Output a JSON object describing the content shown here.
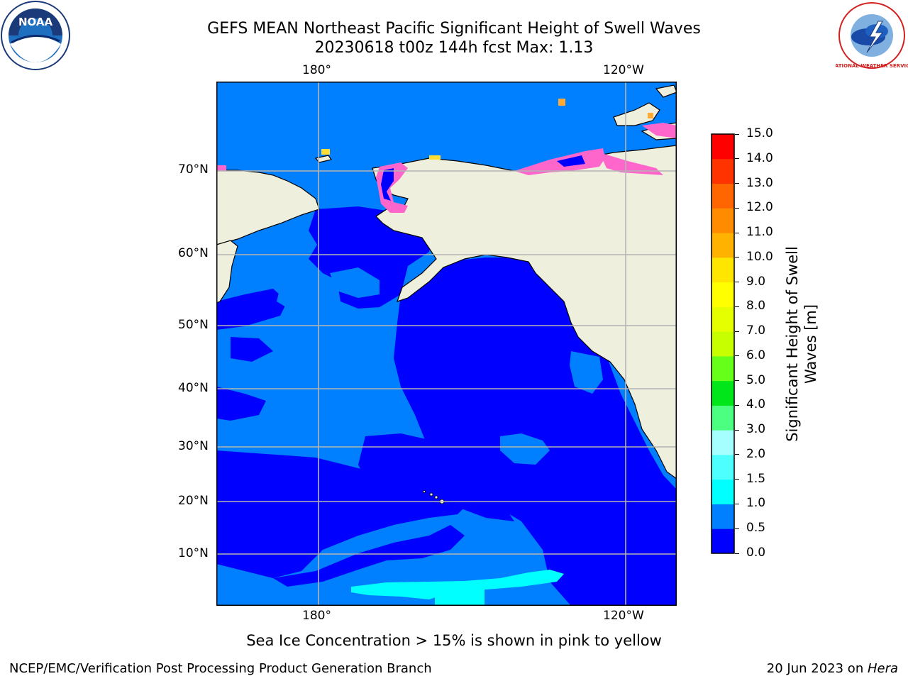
{
  "header": {
    "title": "GEFS MEAN Northeast Pacific Significant Height of Swell Waves",
    "subtitle": "20230618 t00z 144h fcst   Max: 1.13"
  },
  "logos": {
    "left": "NOAA",
    "right": "NATIONAL WEATHER SERVICE"
  },
  "map": {
    "lon_labels_top": [
      "180°",
      "120°W"
    ],
    "lon_labels_bottom": [
      "180°",
      "120°W"
    ],
    "lat_labels": [
      "70°N",
      "60°N",
      "50°N",
      "40°N",
      "30°N",
      "20°N",
      "10°N"
    ],
    "colors": {
      "land": "#efefdd",
      "ocean_0_05": "#0000ff",
      "ocean_05_1": "#0080ff",
      "ocean_1_15": "#00ffff",
      "grid": "#b4b4b4",
      "ice_pink": "#ff66cc",
      "ice_orange": "#ffaa33",
      "ice_yellow": "#ffdd33"
    }
  },
  "colorbar": {
    "title_line1": "Significant Height of Swell",
    "title_line2": "Waves [m]",
    "ticks": [
      "0.0",
      "0.5",
      "1.0",
      "1.5",
      "2.0",
      "3.0",
      "4.0",
      "5.0",
      "6.0",
      "7.0",
      "8.0",
      "9.0",
      "10.0",
      "11.0",
      "12.0",
      "13.0",
      "14.0",
      "15.0"
    ],
    "colors": [
      "#0000ff",
      "#0080ff",
      "#00ffff",
      "#4dffff",
      "#a6ffff",
      "#4dff80",
      "#00e61a",
      "#66ff1a",
      "#c8ff00",
      "#e6ff00",
      "#ffff00",
      "#ffe600",
      "#ffb300",
      "#ff8c00",
      "#ff6600",
      "#ff3300",
      "#ff0000"
    ]
  },
  "caption": "Sea Ice Concentration > 15% is shown in pink to yellow",
  "footer": {
    "left": "NCEP/EMC/Verification Post Processing Product Generation Branch",
    "right_date": "20 Jun 2023 on ",
    "right_host": "Hera"
  }
}
